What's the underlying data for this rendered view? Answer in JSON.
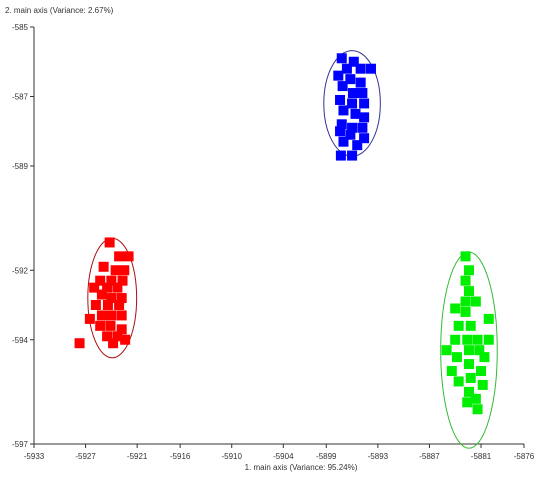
{
  "chart_data": {
    "type": "scatter",
    "title": "",
    "xlabel": "1. main axis (Variance: 95.24%)",
    "ylabel": "2. main axis (Variance: 2.67%)",
    "xlim": [
      -5933,
      -5876
    ],
    "ylim": [
      -597,
      -585
    ],
    "x_ticks": [
      -5933,
      -5927,
      -5921,
      -5916,
      -5910,
      -5904,
      -5899,
      -5893,
      -5887,
      -5881,
      -5876
    ],
    "x_tick_labels": [
      "-5933",
      "-5927",
      "-5921",
      "-5916",
      "-5910",
      "-5904",
      "-5899",
      "-5893",
      "-5887",
      "-5881",
      "-5876"
    ],
    "y_ticks": [
      -585,
      -587,
      -589,
      -592,
      -594,
      -597
    ],
    "y_tick_labels": [
      "-585",
      "-587",
      "-589",
      "-592",
      "-594",
      "-597"
    ],
    "grid": false,
    "legend": "none",
    "marker": "square",
    "series": [
      {
        "color": "#ff0000",
        "ellipse": {
          "center": [
            -5923.9,
            -592.8
          ],
          "rx": 2.84,
          "ry": 1.72,
          "color": "#aa1111"
        },
        "points": [
          [
            -5924.2,
            -591.2
          ],
          [
            -5923.1,
            -591.6
          ],
          [
            -5922.0,
            -591.6
          ],
          [
            -5924.9,
            -591.9
          ],
          [
            -5923.5,
            -592.0
          ],
          [
            -5922.5,
            -592.0
          ],
          [
            -5925.3,
            -592.3
          ],
          [
            -5924.0,
            -592.3
          ],
          [
            -5922.7,
            -592.3
          ],
          [
            -5926.0,
            -592.5
          ],
          [
            -5924.5,
            -592.5
          ],
          [
            -5923.3,
            -592.5
          ],
          [
            -5925.1,
            -592.7
          ],
          [
            -5924.0,
            -592.8
          ],
          [
            -5922.8,
            -592.8
          ],
          [
            -5925.8,
            -593.0
          ],
          [
            -5924.4,
            -593.0
          ],
          [
            -5923.1,
            -593.0
          ],
          [
            -5925.1,
            -593.3
          ],
          [
            -5924.0,
            -593.3
          ],
          [
            -5922.8,
            -593.3
          ],
          [
            -5926.5,
            -593.4
          ],
          [
            -5925.3,
            -593.6
          ],
          [
            -5924.1,
            -593.6
          ],
          [
            -5922.8,
            -593.7
          ],
          [
            -5924.5,
            -593.9
          ],
          [
            -5923.3,
            -593.9
          ],
          [
            -5922.4,
            -594.0
          ],
          [
            -5927.7,
            -594.1
          ],
          [
            -5923.8,
            -594.1
          ]
        ]
      },
      {
        "color": "#0000ff",
        "ellipse": {
          "center": [
            -5896.0,
            -587.2
          ],
          "rx": 3.29,
          "ry": 1.52,
          "color": "#333399"
        },
        "points": [
          [
            -5897.2,
            -585.9
          ],
          [
            -5895.8,
            -586.0
          ],
          [
            -5895.0,
            -586.2
          ],
          [
            -5896.6,
            -586.2
          ],
          [
            -5893.8,
            -586.2
          ],
          [
            -5897.6,
            -586.4
          ],
          [
            -5896.2,
            -586.5
          ],
          [
            -5895.0,
            -586.6
          ],
          [
            -5897.1,
            -586.7
          ],
          [
            -5895.9,
            -586.9
          ],
          [
            -5894.8,
            -586.9
          ],
          [
            -5897.4,
            -587.1
          ],
          [
            -5896.0,
            -587.2
          ],
          [
            -5894.6,
            -587.2
          ],
          [
            -5897.0,
            -587.4
          ],
          [
            -5895.6,
            -587.5
          ],
          [
            -5894.6,
            -587.6
          ],
          [
            -5897.2,
            -587.8
          ],
          [
            -5896.0,
            -587.9
          ],
          [
            -5894.8,
            -587.9
          ],
          [
            -5897.4,
            -588.0
          ],
          [
            -5896.2,
            -588.1
          ],
          [
            -5894.6,
            -588.2
          ],
          [
            -5897.0,
            -588.3
          ],
          [
            -5895.4,
            -588.4
          ],
          [
            -5897.3,
            -588.7
          ],
          [
            -5896.0,
            -588.7
          ]
        ]
      },
      {
        "color": "#00ee00",
        "ellipse": {
          "center": [
            -5882.4,
            -594.3
          ],
          "rx": 3.29,
          "ry": 2.82,
          "color": "#33bb33"
        },
        "points": [
          [
            -5882.8,
            -591.6
          ],
          [
            -5882.4,
            -592.0
          ],
          [
            -5882.8,
            -592.3
          ],
          [
            -5882.4,
            -592.6
          ],
          [
            -5882.8,
            -592.9
          ],
          [
            -5881.6,
            -592.9
          ],
          [
            -5884.0,
            -593.1
          ],
          [
            -5882.8,
            -593.2
          ],
          [
            -5880.1,
            -593.4
          ],
          [
            -5883.6,
            -593.6
          ],
          [
            -5882.2,
            -593.6
          ],
          [
            -5884.0,
            -594.0
          ],
          [
            -5882.6,
            -594.0
          ],
          [
            -5881.4,
            -594.0
          ],
          [
            -5880.1,
            -594.0
          ],
          [
            -5882.4,
            -594.3
          ],
          [
            -5885.0,
            -594.3
          ],
          [
            -5881.2,
            -594.3
          ],
          [
            -5883.8,
            -594.5
          ],
          [
            -5880.6,
            -594.5
          ],
          [
            -5882.4,
            -594.7
          ],
          [
            -5884.4,
            -594.9
          ],
          [
            -5881.0,
            -594.9
          ],
          [
            -5882.2,
            -595.1
          ],
          [
            -5883.6,
            -595.2
          ],
          [
            -5880.8,
            -595.3
          ],
          [
            -5882.4,
            -595.5
          ],
          [
            -5881.6,
            -595.7
          ],
          [
            -5882.6,
            -595.8
          ],
          [
            -5881.4,
            -596.0
          ]
        ]
      }
    ]
  }
}
